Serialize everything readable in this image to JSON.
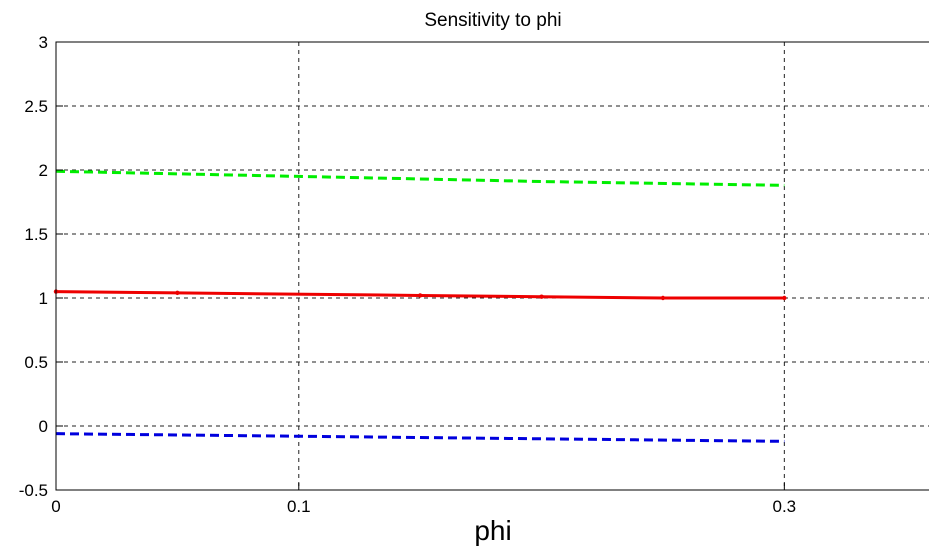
{
  "chart_data": {
    "type": "line",
    "title": "Sensitivity to phi",
    "xlabel": "phi",
    "ylabel": "",
    "xlim": [
      0,
      0.36
    ],
    "ylim": [
      -0.5,
      3
    ],
    "x_ticks": [
      0,
      0.1,
      0.3
    ],
    "x_tick_labels": [
      "0",
      "0.1",
      "0.3"
    ],
    "y_ticks": [
      -0.5,
      0,
      0.5,
      1,
      1.5,
      2,
      2.5,
      3
    ],
    "y_tick_labels": [
      "-0.5",
      "0",
      "0.5",
      "1",
      "1.5",
      "2",
      "2.5",
      "3"
    ],
    "grid": true,
    "series": [
      {
        "color": "#00ee00",
        "style": "dashed",
        "markers": false,
        "x": [
          0,
          0.1,
          0.2,
          0.3
        ],
        "y": [
          1.99,
          1.95,
          1.91,
          1.88
        ]
      },
      {
        "color": "#ee0000",
        "style": "solid",
        "markers": true,
        "x": [
          0,
          0.05,
          0.15,
          0.2,
          0.25,
          0.3
        ],
        "y": [
          1.05,
          1.04,
          1.02,
          1.01,
          1.0,
          1.0
        ]
      },
      {
        "color": "#0000dd",
        "style": "dashed",
        "markers": false,
        "x": [
          0,
          0.1,
          0.2,
          0.3
        ],
        "y": [
          -0.06,
          -0.08,
          -0.1,
          -0.12
        ]
      }
    ]
  }
}
